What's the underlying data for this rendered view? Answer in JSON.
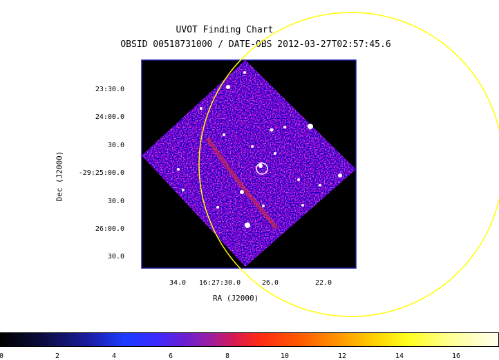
{
  "chart": {
    "title": "UVOT Finding Chart",
    "subtitle": "OBSID 00518731000 / DATE-OBS 2012-03-27T02:57:45.6",
    "xlabel": "RA (J2000)",
    "ylabel": "Dec (J2000)",
    "yticks": [
      "23:30.0",
      "24:00.0",
      "30.0",
      "-29:25:00.0",
      "30.0",
      "26:00.0",
      "30.0"
    ],
    "xticks": [
      "34.0",
      "16:27:30.0",
      "26.0",
      "22.0"
    ]
  },
  "colorbar": {
    "ticks": [
      "0",
      "2",
      "4",
      "6",
      "8",
      "10",
      "12",
      "14",
      "16"
    ],
    "range": [
      0,
      17.5
    ]
  },
  "colors": {
    "frame": "#1a1aa0",
    "circle": "#ffff00",
    "marker": "#ffffff"
  }
}
